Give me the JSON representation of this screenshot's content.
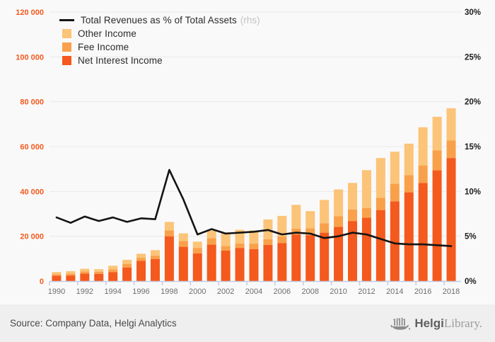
{
  "chart_data": {
    "type": "bar",
    "stacked": true,
    "categories": [
      1990,
      1991,
      1992,
      1993,
      1994,
      1995,
      1996,
      1997,
      1998,
      1999,
      2000,
      2001,
      2002,
      2003,
      2004,
      2005,
      2006,
      2007,
      2008,
      2009,
      2010,
      2011,
      2012,
      2013,
      2014,
      2015,
      2016,
      2017,
      2018
    ],
    "series": [
      {
        "name": "Net Interest Income",
        "type": "bar",
        "axis": "left",
        "color": "#f4591d",
        "values": [
          2400,
          2500,
          3400,
          3250,
          4050,
          6100,
          9000,
          9900,
          20000,
          15300,
          12400,
          16300,
          13600,
          14800,
          14300,
          16100,
          17000,
          20800,
          20500,
          21600,
          24200,
          26800,
          28300,
          31700,
          35600,
          39600,
          43800,
          49400,
          54900
        ]
      },
      {
        "name": "Fee Income",
        "type": "bar",
        "axis": "left",
        "color": "#f9a14a",
        "values": [
          650,
          850,
          950,
          950,
          1250,
          1600,
          1400,
          1500,
          2600,
          2600,
          2400,
          2800,
          2100,
          2000,
          2400,
          2600,
          2900,
          2600,
          3100,
          4200,
          4700,
          5200,
          4300,
          5500,
          7800,
          7700,
          7800,
          8900,
          7800
        ]
      },
      {
        "name": "Other Income",
        "type": "bar",
        "axis": "left",
        "color": "#fbc478",
        "values": [
          1000,
          1100,
          1150,
          1100,
          1550,
          1800,
          1800,
          2400,
          3800,
          3400,
          2800,
          3400,
          6100,
          6100,
          5900,
          8800,
          9200,
          10600,
          7600,
          10400,
          12000,
          11800,
          16900,
          17700,
          14300,
          14000,
          17000,
          15000,
          14400
        ]
      },
      {
        "name": "Total Revenues as % of Total Assets",
        "type": "line",
        "axis": "right",
        "color": "#141414",
        "values": [
          7.1,
          6.5,
          7.2,
          6.7,
          7.1,
          6.6,
          7.0,
          6.9,
          12.4,
          9.1,
          5.2,
          5.8,
          5.3,
          5.4,
          5.5,
          5.7,
          5.2,
          5.4,
          5.3,
          4.8,
          5.0,
          5.4,
          5.2,
          4.7,
          4.2,
          4.1,
          4.1,
          4.0,
          3.9
        ]
      }
    ],
    "left_axis": {
      "range": [
        0,
        120000
      ],
      "tick_step": 20000,
      "tick_labels": [
        "0",
        "20 000",
        "40 000",
        "60 000",
        "80 000",
        "100 000",
        "120 000"
      ],
      "label_color": "#f4591d"
    },
    "right_axis": {
      "range": [
        0,
        30
      ],
      "tick_step": 5,
      "tick_labels": [
        "0%",
        "5%",
        "10%",
        "15%",
        "20%",
        "25%",
        "30%"
      ],
      "label_color": "#1d1d1d"
    },
    "x_axis": {
      "labeled_years": [
        1990,
        1992,
        1994,
        1996,
        1998,
        2000,
        2002,
        2004,
        2006,
        2008,
        2010,
        2012,
        2014,
        2016,
        2018
      ],
      "label_color": "#6e6e6e"
    },
    "grid": true,
    "legend_position": "top-left"
  },
  "legend": {
    "line_label": "Total Revenues as % of Total Assets",
    "line_suffix": "(rhs)",
    "items": [
      {
        "label": "Other Income",
        "color": "#fbc478"
      },
      {
        "label": "Fee Income",
        "color": "#f9a14a"
      },
      {
        "label": "Net Interest Income",
        "color": "#f4591d"
      }
    ]
  },
  "footer": {
    "source": "Source: Company Data, Helgi Analytics",
    "logo_bold": "Helgi",
    "logo_serif": "Library."
  },
  "colors": {
    "background": "#f9f9f9",
    "footer_background": "#efeff0",
    "gridline": "#e9e9e9",
    "axis_line": "#c3cbe5",
    "line_series": "#141414"
  }
}
